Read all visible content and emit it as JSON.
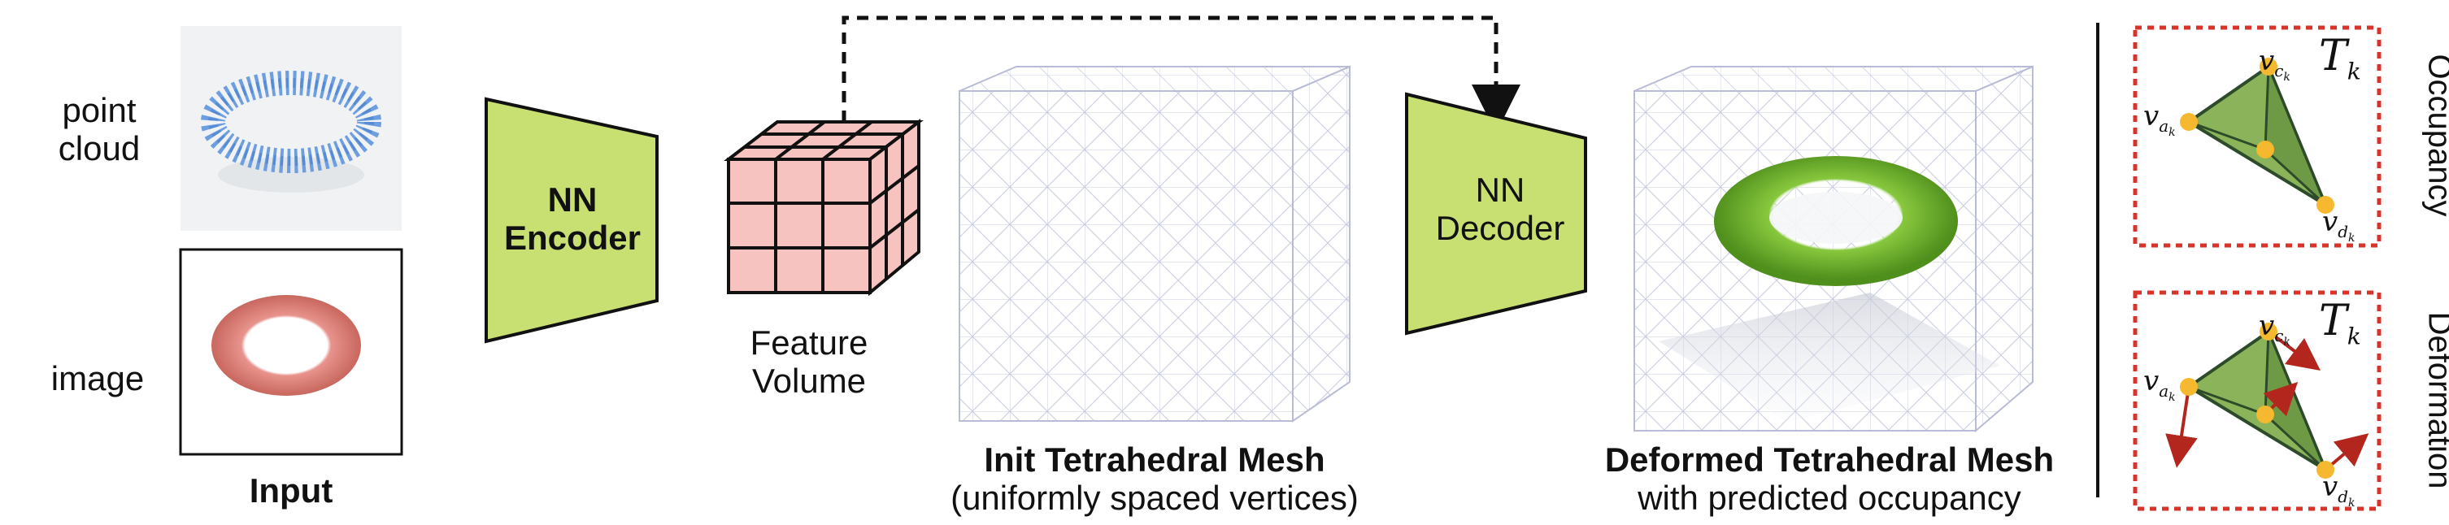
{
  "input": {
    "point_cloud_label_l1": "point",
    "point_cloud_label_l2": "cloud",
    "image_label": "image",
    "caption": "Input"
  },
  "encoder": {
    "line1": "NN",
    "line2": "Encoder",
    "color": "#c8df72"
  },
  "feature_volume": {
    "line1": "Feature",
    "line2": "Volume",
    "color": "#f7c3c0"
  },
  "init_mesh": {
    "caption_bold": "Init Tetrahedral Mesh",
    "caption_sub": "(uniformly spaced vertices)"
  },
  "decoder": {
    "line1": "NN",
    "line2": "Decoder",
    "color": "#c8df72"
  },
  "deformed_mesh": {
    "caption_bold": "Deformed Tetrahedral Mesh",
    "caption_sub": "with predicted occupancy",
    "torus_color": "#6fb52c"
  },
  "tetra_panels": {
    "occupancy_label": "Occupancy",
    "deformation_label": "Deformation",
    "tet_label": "T",
    "tet_sub": "k",
    "vertex_sym": "v",
    "vertex_a": "a",
    "vertex_c": "c",
    "vertex_d": "d",
    "vertex_k": "k",
    "border_color": "#d9342b",
    "vertex_color": "#f5b82e",
    "arrow_color": "#b3261e"
  }
}
